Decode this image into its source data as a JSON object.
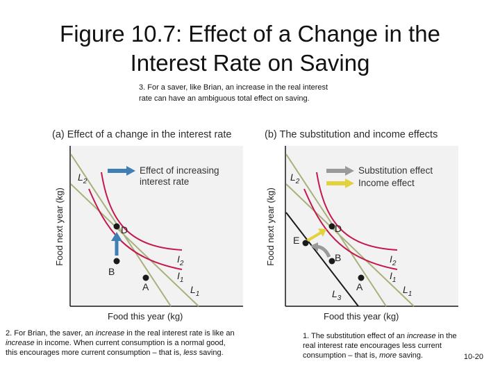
{
  "title": {
    "line1": "Figure 10.7: Effect of a Change in the",
    "line2": "Interest Rate on Saving"
  },
  "note_top": {
    "line1": "3. For a saver, like Brian, an increase in the real interest",
    "line2": "rate can have an ambiguous  total effect on saving."
  },
  "panel_a": {
    "title": "(a) Effect of a change in the interest rate",
    "y_label": "Food next year (kg)",
    "x_label": "Food this year (kg)",
    "legend": {
      "line1": "Effect of increasing",
      "line2": "interest rate"
    },
    "points": {
      "D": "D",
      "B": "B",
      "A": "A"
    },
    "curves": {
      "L2": "L",
      "L2_sub": "2",
      "L1": "L",
      "L1_sub": "1",
      "I2": "I",
      "I2_sub": "2",
      "I1": "I",
      "I1_sub": "1"
    }
  },
  "panel_b": {
    "title": "(b) The substitution and income effects",
    "y_label": "Food next year (kg)",
    "x_label": "Food this year (kg)",
    "legend": {
      "substitution": "Substitution effect",
      "income": "Income effect"
    },
    "points": {
      "D": "D",
      "E": "E",
      "B": "B",
      "A": "A"
    },
    "curves": {
      "L2": "L",
      "L2_sub": "2",
      "L1": "L",
      "L1_sub": "1",
      "L3": "L",
      "L3_sub": "3",
      "I2": "I",
      "I2_sub": "2",
      "I1": "I",
      "I1_sub": "1"
    }
  },
  "note_bottom_left": {
    "p1": "2. For Brian, the saver, an ",
    "p1_em": "increase",
    "p2": " in the real interest rate is like an ",
    "p3_em": "increase",
    "p4": " in income. When current consumption is a normal good,",
    "p5": "this encourages more current consumption – that is, ",
    "p5_em": "less",
    "p6": " saving."
  },
  "note_bottom_right": {
    "p1": "1. The substitution effect of an ",
    "p1_em": "increase",
    "p2": " in the",
    "p3": "real interest rate encourages less current",
    "p4": "consumption – that is, ",
    "p4_em": "more",
    "p5": " saving."
  },
  "page_number": "10-20",
  "colors": {
    "budget_line": "#a8b07a",
    "indifference": "#c4184c",
    "blue_arrow": "#3f7fb4",
    "gray_arrow": "#9a9a9a",
    "yellow_arrow": "#e2d23c",
    "new_budget": "#1a1a1a",
    "point": "#1a1a1a"
  }
}
